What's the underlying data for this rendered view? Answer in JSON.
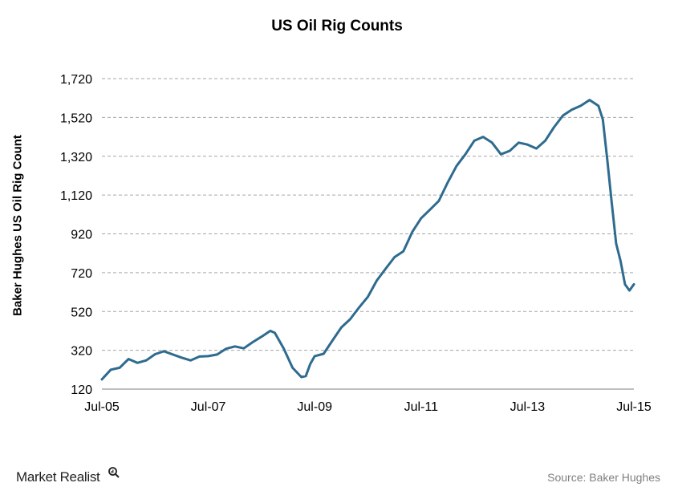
{
  "branding": {
    "name": "Market Realist"
  },
  "source_note": "Source: Baker Hughes",
  "chart_data": {
    "type": "line",
    "title": "US Oil Rig Counts",
    "xlabel": "",
    "ylabel": "Baker Hughes US Oil Rig Count",
    "ylim": [
      120,
      1720
    ],
    "yticks": [
      120,
      320,
      520,
      720,
      920,
      1120,
      1320,
      1520,
      1720
    ],
    "ytick_labels": [
      "120",
      "320",
      "520",
      "720",
      "920",
      "1,120",
      "1,320",
      "1,520",
      "1,720"
    ],
    "xlim": [
      "2005-07",
      "2015-07"
    ],
    "xticks": [
      "2005-07",
      "2007-07",
      "2009-07",
      "2011-07",
      "2013-07",
      "2015-07"
    ],
    "xtick_labels": [
      "Jul-05",
      "Jul-07",
      "Jul-09",
      "Jul-11",
      "Jul-13",
      "Jul-15"
    ],
    "grid": "horizontal dashed",
    "line_color": "#2e6b8f",
    "series": [
      {
        "x": [
          "2005-07",
          "2005-09",
          "2005-11",
          "2006-01",
          "2006-03",
          "2006-05",
          "2006-07",
          "2006-09",
          "2006-11",
          "2007-01",
          "2007-03",
          "2007-05",
          "2007-07",
          "2007-09",
          "2007-11",
          "2008-01",
          "2008-03",
          "2008-05",
          "2008-07",
          "2008-09",
          "2008-10",
          "2008-12",
          "2009-02",
          "2009-04",
          "2009-05",
          "2009-06",
          "2009-07",
          "2009-09",
          "2009-11",
          "2010-01",
          "2010-03",
          "2010-05",
          "2010-07",
          "2010-09",
          "2010-11",
          "2011-01",
          "2011-03",
          "2011-05",
          "2011-07",
          "2011-09",
          "2011-11",
          "2012-01",
          "2012-03",
          "2012-05",
          "2012-07",
          "2012-09",
          "2012-11",
          "2013-01",
          "2013-03",
          "2013-05",
          "2013-07",
          "2013-09",
          "2013-11",
          "2014-01",
          "2014-03",
          "2014-05",
          "2014-07",
          "2014-09",
          "2014-10",
          "2014-11",
          "2014-12",
          "2015-01",
          "2015-02",
          "2015-03",
          "2015-04",
          "2015-05",
          "2015-06",
          "2015-07"
        ],
        "y": [
          170,
          220,
          230,
          275,
          255,
          268,
          300,
          315,
          298,
          282,
          268,
          288,
          290,
          298,
          328,
          340,
          330,
          362,
          390,
          420,
          410,
          330,
          230,
          182,
          187,
          250,
          290,
          302,
          370,
          438,
          480,
          540,
          596,
          680,
          740,
          800,
          830,
          930,
          1000,
          1045,
          1090,
          1185,
          1270,
          1330,
          1400,
          1420,
          1390,
          1330,
          1348,
          1390,
          1380,
          1360,
          1400,
          1470,
          1530,
          1560,
          1580,
          1610,
          1595,
          1580,
          1510,
          1300,
          1080,
          870,
          780,
          660,
          628,
          660
        ]
      }
    ]
  }
}
